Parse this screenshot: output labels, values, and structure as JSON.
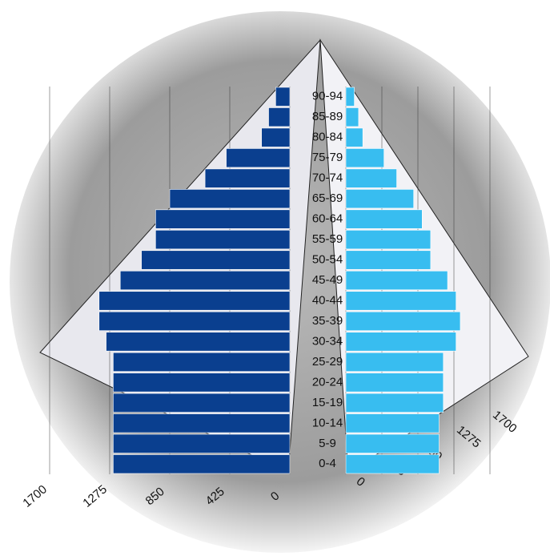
{
  "chart_data": {
    "type": "population-pyramid",
    "categories": [
      "0-4",
      "5-9",
      "10-14",
      "15-19",
      "20-24",
      "25-29",
      "30-34",
      "35-39",
      "40-44",
      "45-49",
      "50-54",
      "55-59",
      "60-64",
      "65-69",
      "70-74",
      "75-79",
      "80-84",
      "85-89",
      "90-94"
    ],
    "series": [
      {
        "color": "#0a3f8f",
        "side": "left",
        "values": [
          1250,
          1250,
          1250,
          1250,
          1250,
          1250,
          1300,
          1350,
          1350,
          1200,
          1050,
          950,
          950,
          850,
          600,
          450,
          200,
          150,
          100
        ]
      },
      {
        "color": "#38bdf0",
        "side": "right",
        "values": [
          1100,
          1100,
          1100,
          1150,
          1150,
          1150,
          1300,
          1350,
          1300,
          1200,
          1000,
          1000,
          900,
          800,
          600,
          450,
          200,
          150,
          100
        ]
      }
    ],
    "xlim": [
      0,
      1700
    ],
    "xticks": [
      0,
      425,
      850,
      1275,
      1700
    ]
  }
}
